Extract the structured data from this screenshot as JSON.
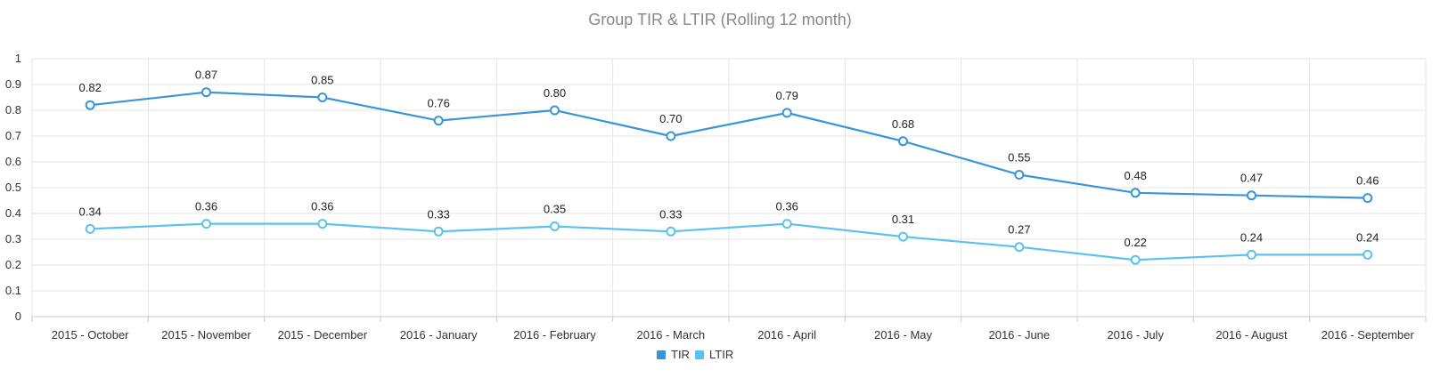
{
  "chart_data": {
    "type": "line",
    "title": "Group TIR & LTIR (Rolling 12 month)",
    "xlabel": "",
    "ylabel": "",
    "categories": [
      "2015 - October",
      "2015 - November",
      "2015 - December",
      "2016 - January",
      "2016 - February",
      "2016 - March",
      "2016 - April",
      "2016 - May",
      "2016 - June",
      "2016 - July",
      "2016 - August",
      "2016 - September"
    ],
    "series": [
      {
        "name": "TIR",
        "color": "#3a95d6",
        "values": [
          0.82,
          0.87,
          0.85,
          0.76,
          0.8,
          0.7,
          0.79,
          0.68,
          0.55,
          0.48,
          0.47,
          0.46
        ],
        "labels": [
          "0.82",
          "0.87",
          "0.85",
          "0.76",
          "0.80",
          "0.70",
          "0.79",
          "0.68",
          "0.55",
          "0.48",
          "0.47",
          "0.46"
        ]
      },
      {
        "name": "LTIR",
        "color": "#5bc2ee",
        "values": [
          0.34,
          0.36,
          0.36,
          0.33,
          0.35,
          0.33,
          0.36,
          0.31,
          0.27,
          0.22,
          0.24,
          0.24
        ],
        "labels": [
          "0.34",
          "0.36",
          "0.36",
          "0.33",
          "0.35",
          "0.33",
          "0.36",
          "0.31",
          "0.27",
          "0.22",
          "0.24",
          "0.24"
        ]
      }
    ],
    "ylim": [
      0,
      1
    ],
    "yticks": [
      "0",
      "0.1",
      "0.2",
      "0.3",
      "0.4",
      "0.5",
      "0.6",
      "0.7",
      "0.8",
      "0.9",
      "1"
    ],
    "grid": true,
    "legend": "bottom-center"
  }
}
